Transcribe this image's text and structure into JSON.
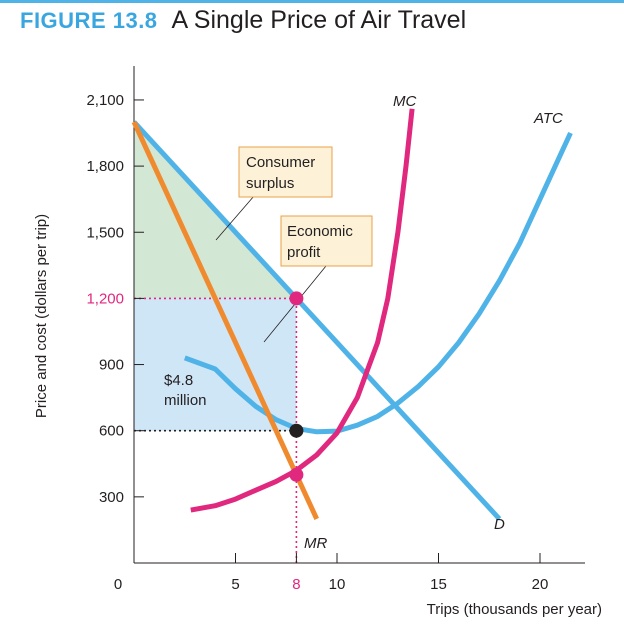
{
  "figure": {
    "label": "FIGURE 13.8",
    "title": "A Single Price of Air Travel"
  },
  "colors": {
    "accent": "#3aa6e0",
    "demand": "#4fb3e8",
    "atc": "#4fb3e8",
    "mr": "#f08a2e",
    "mc": "#e0287f",
    "highlight_tick": "#e0287f",
    "consumer_surplus_fill": "#d3e7d5",
    "profit_fill": "#cfe6f7",
    "callout_fill": "#fdf2d8",
    "callout_border": "#e8a24a"
  },
  "chart_data": {
    "type": "line",
    "xlabel": "Trips (thousands per year)",
    "ylabel": "Price and cost (dollars per trip)",
    "xlim": [
      0,
      23
    ],
    "ylim": [
      0,
      2300
    ],
    "x_ticks": [
      {
        "value": 0,
        "label": "0"
      },
      {
        "value": 5,
        "label": "5"
      },
      {
        "value": 8,
        "label": "8",
        "highlight": true
      },
      {
        "value": 10,
        "label": "10"
      },
      {
        "value": 15,
        "label": "15"
      },
      {
        "value": 20,
        "label": "20"
      }
    ],
    "y_ticks": [
      {
        "value": 300,
        "label": "300"
      },
      {
        "value": 600,
        "label": "600"
      },
      {
        "value": 900,
        "label": "900"
      },
      {
        "value": 1200,
        "label": "1,200",
        "highlight": true
      },
      {
        "value": 1500,
        "label": "1,500"
      },
      {
        "value": 1800,
        "label": "1,800"
      },
      {
        "value": 2100,
        "label": "2,100"
      }
    ],
    "series": [
      {
        "name": "D",
        "color": "#4fb3e8",
        "x": [
          0,
          18
        ],
        "y": [
          2000,
          200
        ]
      },
      {
        "name": "MR",
        "color": "#f08a2e",
        "x": [
          0,
          9
        ],
        "y": [
          2000,
          200
        ]
      },
      {
        "name": "ATC",
        "color": "#4fb3e8",
        "x": [
          2.5,
          4,
          5,
          6,
          7,
          8,
          9,
          10,
          11,
          12,
          13,
          14,
          15,
          16,
          17,
          18,
          19,
          20,
          21,
          21.5
        ],
        "y": [
          930,
          880,
          790,
          710,
          650,
          610,
          595,
          598,
          625,
          665,
          725,
          800,
          890,
          1000,
          1130,
          1280,
          1450,
          1650,
          1850,
          1950
        ]
      },
      {
        "name": "MC",
        "color": "#e0287f",
        "x": [
          2.8,
          4,
          5,
          6,
          7,
          8,
          9,
          10,
          11,
          12,
          12.5,
          13,
          13.4,
          13.7
        ],
        "y": [
          240,
          260,
          290,
          330,
          370,
          420,
          490,
          590,
          750,
          1000,
          1200,
          1500,
          1800,
          2060
        ]
      }
    ],
    "points": [
      {
        "x": 8,
        "y": 1200,
        "color": "#e0287f"
      },
      {
        "x": 8,
        "y": 600,
        "color": "#231f20"
      },
      {
        "x": 8,
        "y": 400,
        "color": "#e0287f"
      }
    ],
    "areas": [
      {
        "name": "Consumer surplus",
        "polygon": [
          [
            0,
            2000
          ],
          [
            8,
            1200
          ],
          [
            0,
            1200
          ]
        ],
        "color": "#d3e7d5"
      },
      {
        "name": "Economic profit",
        "polygon": [
          [
            0,
            1200
          ],
          [
            8,
            1200
          ],
          [
            8,
            600
          ],
          [
            0,
            600
          ]
        ],
        "color": "#cfe6f7"
      }
    ],
    "guides": [
      {
        "type": "h",
        "y": 1200,
        "x": [
          0,
          8
        ],
        "color": "#e0287f"
      },
      {
        "type": "h",
        "y": 600,
        "x": [
          0,
          8
        ],
        "color": "#231f20"
      },
      {
        "type": "v",
        "x": 8,
        "y": [
          0,
          1200
        ],
        "color": "#e0287f"
      }
    ],
    "annotations": {
      "consumer_surplus": "Consumer\nsurplus",
      "economic_profit": "Economic\nprofit",
      "profit_value": "$4.8\nmillion"
    }
  }
}
